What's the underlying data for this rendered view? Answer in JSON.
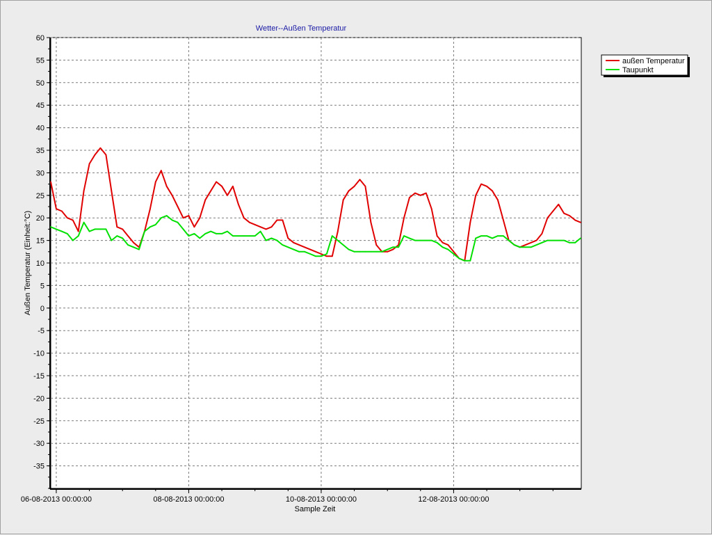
{
  "chart_data": {
    "type": "line",
    "title": "Wetter--Außen Temperatur",
    "xlabel": "Sample Zeit",
    "ylabel": "Außen Temperatur (Einheit:°C)",
    "ylim": [
      -40,
      60
    ],
    "yticks": [
      60,
      55,
      50,
      45,
      40,
      35,
      30,
      25,
      20,
      15,
      10,
      5,
      0,
      -5,
      -10,
      -15,
      -20,
      -25,
      -30,
      -35
    ],
    "xlim": [
      "2013-08-05 22:00",
      "2013-08-13 22:00"
    ],
    "xticks": [
      {
        "label": "06-08-2013 00:00:00",
        "value": "2013-08-06 00:00"
      },
      {
        "label": "08-08-2013 00:00:00",
        "value": "2013-08-08 00:00"
      },
      {
        "label": "10-08-2013 00:00:00",
        "value": "2013-08-10 00:00"
      },
      {
        "label": "12-08-2013 00:00:00",
        "value": "2013-08-12 00:00"
      }
    ],
    "grid": true,
    "legend_position": "top-right",
    "colors": {
      "title": "#1a1aa6",
      "temperature": "#e00000",
      "dewpoint": "#00e000"
    },
    "series": [
      {
        "name": "außen Temperatur",
        "color": "#e00000",
        "x": [
          "2013-08-05 22:00",
          "2013-08-06 00:00",
          "2013-08-06 02:00",
          "2013-08-06 04:00",
          "2013-08-06 06:00",
          "2013-08-06 08:00",
          "2013-08-06 10:00",
          "2013-08-06 12:00",
          "2013-08-06 14:00",
          "2013-08-06 16:00",
          "2013-08-06 18:00",
          "2013-08-06 20:00",
          "2013-08-06 22:00",
          "2013-08-07 00:00",
          "2013-08-07 02:00",
          "2013-08-07 04:00",
          "2013-08-07 06:00",
          "2013-08-07 08:00",
          "2013-08-07 10:00",
          "2013-08-07 12:00",
          "2013-08-07 14:00",
          "2013-08-07 16:00",
          "2013-08-07 18:00",
          "2013-08-07 20:00",
          "2013-08-07 22:00",
          "2013-08-08 00:00",
          "2013-08-08 02:00",
          "2013-08-08 04:00",
          "2013-08-08 06:00",
          "2013-08-08 08:00",
          "2013-08-08 10:00",
          "2013-08-08 12:00",
          "2013-08-08 14:00",
          "2013-08-08 16:00",
          "2013-08-08 18:00",
          "2013-08-08 20:00",
          "2013-08-08 22:00",
          "2013-08-09 00:00",
          "2013-08-09 02:00",
          "2013-08-09 04:00",
          "2013-08-09 06:00",
          "2013-08-09 08:00",
          "2013-08-09 10:00",
          "2013-08-09 12:00",
          "2013-08-09 14:00",
          "2013-08-09 16:00",
          "2013-08-09 18:00",
          "2013-08-09 20:00",
          "2013-08-09 22:00",
          "2013-08-10 00:00",
          "2013-08-10 02:00",
          "2013-08-10 04:00",
          "2013-08-10 06:00",
          "2013-08-10 08:00",
          "2013-08-10 10:00",
          "2013-08-10 12:00",
          "2013-08-10 14:00",
          "2013-08-10 16:00",
          "2013-08-10 18:00",
          "2013-08-10 20:00",
          "2013-08-10 22:00",
          "2013-08-11 00:00",
          "2013-08-11 02:00",
          "2013-08-11 04:00",
          "2013-08-11 06:00",
          "2013-08-11 08:00",
          "2013-08-11 10:00",
          "2013-08-11 12:00",
          "2013-08-11 14:00",
          "2013-08-11 16:00",
          "2013-08-11 18:00",
          "2013-08-11 20:00",
          "2013-08-11 22:00",
          "2013-08-12 00:00",
          "2013-08-12 02:00",
          "2013-08-12 04:00",
          "2013-08-12 06:00",
          "2013-08-12 08:00",
          "2013-08-12 10:00",
          "2013-08-12 12:00",
          "2013-08-12 14:00",
          "2013-08-12 16:00",
          "2013-08-12 18:00",
          "2013-08-12 20:00",
          "2013-08-12 22:00",
          "2013-08-13 00:00",
          "2013-08-13 02:00",
          "2013-08-13 04:00",
          "2013-08-13 06:00",
          "2013-08-13 08:00",
          "2013-08-13 10:00",
          "2013-08-13 12:00",
          "2013-08-13 14:00",
          "2013-08-13 16:00",
          "2013-08-13 18:00",
          "2013-08-13 20:00",
          "2013-08-13 22:00"
        ],
        "values": [
          28,
          22,
          21.5,
          20,
          19.5,
          17,
          26,
          32,
          34,
          35.5,
          34,
          26,
          18,
          17.5,
          16,
          14.5,
          13.5,
          17,
          22,
          28,
          30.5,
          27,
          25,
          22.5,
          20,
          20.5,
          18,
          20,
          24,
          26,
          28,
          27,
          25,
          27,
          23,
          20,
          19,
          18.5,
          18,
          17.5,
          18,
          19.5,
          19.5,
          15.5,
          14.5,
          14,
          13.5,
          13,
          12.5,
          12,
          11.5,
          11.5,
          17,
          24,
          26,
          27,
          28.5,
          27,
          19,
          14,
          12.5,
          12.5,
          13,
          14,
          20,
          24.5,
          25.5,
          25,
          25.5,
          22,
          16,
          14.5,
          14,
          12.5,
          11,
          10.5,
          19,
          25,
          27.5,
          27,
          26,
          24,
          19.5,
          15,
          14,
          13.5,
          14,
          14.5,
          15,
          16.5,
          20,
          21.5,
          23,
          21,
          20.5,
          19.5,
          19
        ]
      },
      {
        "name": "Taupunkt",
        "color": "#00e000",
        "x": [
          "2013-08-05 22:00",
          "2013-08-06 00:00",
          "2013-08-06 02:00",
          "2013-08-06 04:00",
          "2013-08-06 06:00",
          "2013-08-06 08:00",
          "2013-08-06 10:00",
          "2013-08-06 12:00",
          "2013-08-06 14:00",
          "2013-08-06 16:00",
          "2013-08-06 18:00",
          "2013-08-06 20:00",
          "2013-08-06 22:00",
          "2013-08-07 00:00",
          "2013-08-07 02:00",
          "2013-08-07 04:00",
          "2013-08-07 06:00",
          "2013-08-07 08:00",
          "2013-08-07 10:00",
          "2013-08-07 12:00",
          "2013-08-07 14:00",
          "2013-08-07 16:00",
          "2013-08-07 18:00",
          "2013-08-07 20:00",
          "2013-08-07 22:00",
          "2013-08-08 00:00",
          "2013-08-08 02:00",
          "2013-08-08 04:00",
          "2013-08-08 06:00",
          "2013-08-08 08:00",
          "2013-08-08 10:00",
          "2013-08-08 12:00",
          "2013-08-08 14:00",
          "2013-08-08 16:00",
          "2013-08-08 18:00",
          "2013-08-08 20:00",
          "2013-08-08 22:00",
          "2013-08-09 00:00",
          "2013-08-09 02:00",
          "2013-08-09 04:00",
          "2013-08-09 06:00",
          "2013-08-09 08:00",
          "2013-08-09 10:00",
          "2013-08-09 12:00",
          "2013-08-09 14:00",
          "2013-08-09 16:00",
          "2013-08-09 18:00",
          "2013-08-09 20:00",
          "2013-08-09 22:00",
          "2013-08-10 00:00",
          "2013-08-10 02:00",
          "2013-08-10 04:00",
          "2013-08-10 06:00",
          "2013-08-10 08:00",
          "2013-08-10 10:00",
          "2013-08-10 12:00",
          "2013-08-10 14:00",
          "2013-08-10 16:00",
          "2013-08-10 18:00",
          "2013-08-10 20:00",
          "2013-08-10 22:00",
          "2013-08-11 00:00",
          "2013-08-11 02:00",
          "2013-08-11 04:00",
          "2013-08-11 06:00",
          "2013-08-11 08:00",
          "2013-08-11 10:00",
          "2013-08-11 12:00",
          "2013-08-11 14:00",
          "2013-08-11 16:00",
          "2013-08-11 18:00",
          "2013-08-11 20:00",
          "2013-08-11 22:00",
          "2013-08-12 00:00",
          "2013-08-12 02:00",
          "2013-08-12 04:00",
          "2013-08-12 06:00",
          "2013-08-12 08:00",
          "2013-08-12 10:00",
          "2013-08-12 12:00",
          "2013-08-12 14:00",
          "2013-08-12 16:00",
          "2013-08-12 18:00",
          "2013-08-12 20:00",
          "2013-08-12 22:00",
          "2013-08-13 00:00",
          "2013-08-13 02:00",
          "2013-08-13 04:00",
          "2013-08-13 06:00",
          "2013-08-13 08:00",
          "2013-08-13 10:00",
          "2013-08-13 12:00",
          "2013-08-13 14:00",
          "2013-08-13 16:00",
          "2013-08-13 18:00",
          "2013-08-13 20:00",
          "2013-08-13 22:00"
        ],
        "values": [
          18,
          17.5,
          17,
          16.5,
          15,
          16,
          19,
          17,
          17.5,
          17.5,
          17.5,
          15,
          16,
          15.5,
          14,
          13.5,
          13,
          17,
          18,
          18.5,
          20,
          20.5,
          19.5,
          19,
          17.5,
          16,
          16.5,
          15.5,
          16.5,
          17,
          16.5,
          16.5,
          17,
          16,
          16,
          16,
          16,
          16,
          17,
          15,
          15.5,
          15,
          14,
          13.5,
          13,
          12.5,
          12.5,
          12,
          11.5,
          11.5,
          12,
          16,
          15,
          14,
          13,
          12.5,
          12.5,
          12.5,
          12.5,
          12.5,
          12.5,
          13,
          13.5,
          13.5,
          16,
          15.5,
          15,
          15,
          15,
          15,
          14.5,
          13.5,
          13,
          12,
          11,
          10.5,
          10.5,
          15.5,
          16,
          16,
          15.5,
          16,
          16,
          15,
          14,
          13.5,
          13.5,
          13.5,
          14,
          14.5,
          15,
          15,
          15,
          15,
          14.5,
          14.5,
          15.5
        ]
      }
    ]
  }
}
